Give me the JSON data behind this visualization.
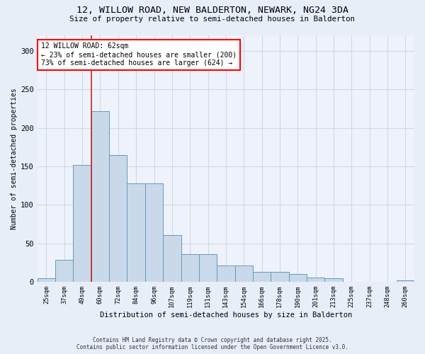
{
  "title1": "12, WILLOW ROAD, NEW BALDERTON, NEWARK, NG24 3DA",
  "title2": "Size of property relative to semi-detached houses in Balderton",
  "xlabel": "Distribution of semi-detached houses by size in Balderton",
  "ylabel": "Number of semi-detached properties",
  "categories": [
    "25sqm",
    "37sqm",
    "49sqm",
    "60sqm",
    "72sqm",
    "84sqm",
    "96sqm",
    "107sqm",
    "119sqm",
    "131sqm",
    "143sqm",
    "154sqm",
    "166sqm",
    "178sqm",
    "190sqm",
    "201sqm",
    "213sqm",
    "225sqm",
    "237sqm",
    "248sqm",
    "260sqm"
  ],
  "values": [
    5,
    29,
    152,
    222,
    165,
    128,
    128,
    61,
    36,
    36,
    21,
    21,
    13,
    13,
    10,
    6,
    5,
    0,
    0,
    0,
    2
  ],
  "bar_color": "#c9d9ea",
  "bar_edge_color": "#6699bb",
  "vline_x": 3,
  "vline_color": "#cc2222",
  "annotation_text": "12 WILLOW ROAD: 62sqm\n← 23% of semi-detached houses are smaller (200)\n73% of semi-detached houses are larger (624) →",
  "ylim": [
    0,
    320
  ],
  "yticks": [
    0,
    50,
    100,
    150,
    200,
    250,
    300
  ],
  "footer1": "Contains HM Land Registry data © Crown copyright and database right 2025.",
  "footer2": "Contains public sector information licensed under the Open Government Licence v3.0.",
  "bg_color": "#e8eef8",
  "plot_bg_color": "#eef2fa",
  "grid_color": "#d0d8e8"
}
